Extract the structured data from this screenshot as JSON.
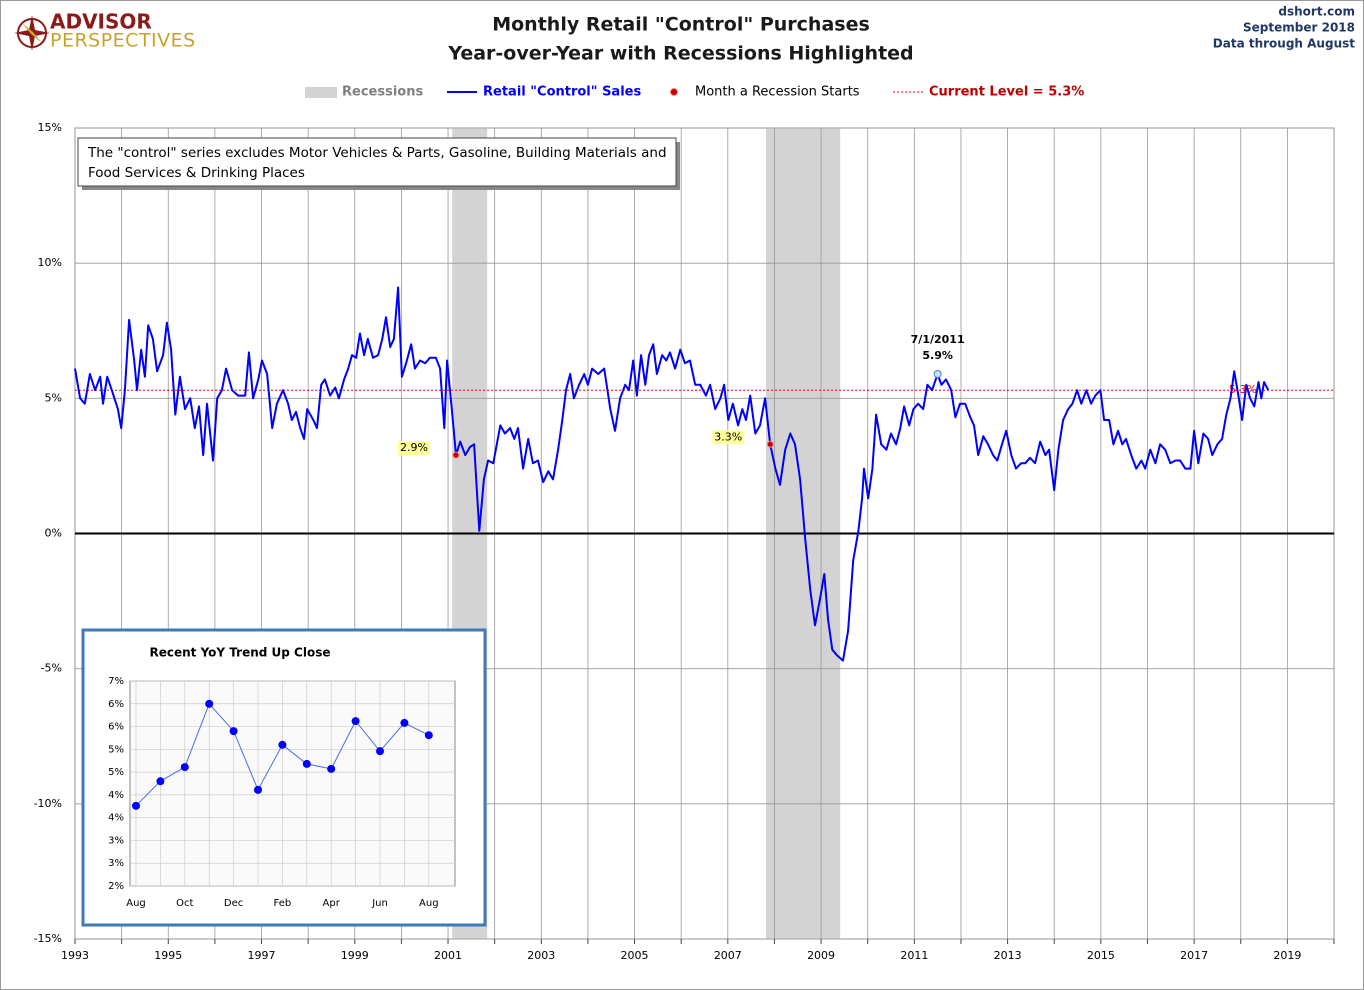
{
  "header": {
    "logo": [
      "ADVISOR",
      "PERSPECTIVES"
    ],
    "source": [
      "dshort.com",
      "September 2018",
      "Data through August"
    ]
  },
  "chart_data": [
    {
      "type": "line",
      "title": [
        "Monthly Retail \"Control\" Purchases",
        "Year-over-Year with Recessions Highlighted"
      ],
      "note": [
        "The \"control\"  series excludes Motor Vehicles & Parts, Gasoline, Building Materials and",
        "Food Services & Drinking Places"
      ],
      "xlim": [
        1993,
        2020
      ],
      "xticks": [
        1993,
        1995,
        1997,
        1999,
        2001,
        2003,
        2005,
        2007,
        2009,
        2011,
        2013,
        2015,
        2017,
        2019
      ],
      "x_minor_ticks": [
        1994,
        1996,
        1998,
        2000,
        2002,
        2004,
        2006,
        2008,
        2010,
        2012,
        2014,
        2016,
        2018,
        2020
      ],
      "ylim": [
        -15,
        15
      ],
      "yticks": [
        {
          "value": -15,
          "label": "-15%"
        },
        {
          "value": -10,
          "label": "-10%"
        },
        {
          "value": -5,
          "label": "-5%"
        },
        {
          "value": 0,
          "label": "0%"
        },
        {
          "value": 5,
          "label": "5%"
        },
        {
          "value": 10,
          "label": "10%"
        },
        {
          "value": 15,
          "label": "15%"
        }
      ],
      "grid": true,
      "recessions": {
        "name": "Recessions",
        "color": "#d3d3d3",
        "ranges": [
          [
            2001.09,
            2001.84
          ],
          [
            2007.82,
            2009.41
          ]
        ]
      },
      "x": [
        1993.0,
        1993.11,
        1993.21,
        1993.32,
        1993.43,
        1993.54,
        1993.6,
        1993.69,
        1993.79,
        1993.92,
        1993.99,
        1994.07,
        1994.16,
        1994.27,
        1994.33,
        1994.42,
        1994.5,
        1994.57,
        1994.67,
        1994.76,
        1994.89,
        1994.97,
        1995.06,
        1995.15,
        1995.25,
        1995.36,
        1995.47,
        1995.57,
        1995.66,
        1995.75,
        1995.83,
        1995.96,
        1996.05,
        1996.15,
        1996.24,
        1996.37,
        1996.5,
        1996.65,
        1996.73,
        1996.82,
        1996.93,
        1997.01,
        1997.12,
        1997.23,
        1997.33,
        1997.46,
        1997.57,
        1997.65,
        1997.74,
        1997.83,
        1997.91,
        1997.98,
        1998.11,
        1998.19,
        1998.28,
        1998.36,
        1998.47,
        1998.58,
        1998.66,
        1998.77,
        1998.86,
        1998.94,
        1999.03,
        1999.11,
        1999.2,
        1999.28,
        1999.39,
        1999.5,
        1999.59,
        1999.67,
        1999.76,
        1999.84,
        1999.93,
        2000.01,
        2000.1,
        2000.21,
        2000.29,
        2000.4,
        2000.51,
        2000.61,
        2000.74,
        2000.83,
        2000.92,
        2000.98,
        2001.07,
        2001.17,
        2001.26,
        2001.37,
        2001.47,
        2001.56,
        2001.67,
        2001.77,
        2001.86,
        2001.97,
        2002.12,
        2002.22,
        2002.33,
        2002.42,
        2002.5,
        2002.61,
        2002.72,
        2002.82,
        2002.93,
        2003.04,
        2003.15,
        2003.25,
        2003.36,
        2003.45,
        2003.53,
        2003.62,
        2003.7,
        2003.81,
        2003.92,
        2004.0,
        2004.09,
        2004.22,
        2004.35,
        2004.48,
        2004.58,
        2004.69,
        2004.8,
        2004.88,
        2004.97,
        2005.05,
        2005.14,
        2005.23,
        2005.31,
        2005.4,
        2005.48,
        2005.59,
        2005.68,
        2005.76,
        2005.87,
        2005.98,
        2006.08,
        2006.19,
        2006.3,
        2006.41,
        2006.53,
        2006.62,
        2006.73,
        2006.84,
        2006.92,
        2007.01,
        2007.11,
        2007.22,
        2007.31,
        2007.39,
        2007.48,
        2007.59,
        2007.69,
        2007.8,
        2007.91,
        2008.02,
        2008.12,
        2008.23,
        2008.34,
        2008.44,
        2008.55,
        2008.66,
        2008.77,
        2008.87,
        2008.98,
        2009.07,
        2009.15,
        2009.24,
        2009.34,
        2009.47,
        2009.58,
        2009.69,
        2009.8,
        2009.88,
        2009.92,
        2010.01,
        2010.1,
        2010.18,
        2010.29,
        2010.4,
        2010.5,
        2010.61,
        2010.7,
        2010.78,
        2010.89,
        2010.98,
        2011.08,
        2011.19,
        2011.28,
        2011.38,
        2011.5,
        2011.58,
        2011.68,
        2011.79,
        2011.88,
        2011.98,
        2012.09,
        2012.2,
        2012.28,
        2012.37,
        2012.48,
        2012.58,
        2012.69,
        2012.78,
        2012.88,
        2012.97,
        2013.08,
        2013.18,
        2013.29,
        2013.38,
        2013.48,
        2013.59,
        2013.7,
        2013.81,
        2013.89,
        2014.0,
        2014.09,
        2014.19,
        2014.3,
        2014.39,
        2014.49,
        2014.58,
        2014.69,
        2014.79,
        2014.88,
        2014.99,
        2015.07,
        2015.18,
        2015.27,
        2015.37,
        2015.46,
        2015.54,
        2015.65,
        2015.76,
        2015.87,
        2015.95,
        2016.06,
        2016.17,
        2016.27,
        2016.38,
        2016.49,
        2016.6,
        2016.7,
        2016.81,
        2016.92,
        2017.0,
        2017.09,
        2017.2,
        2017.3,
        2017.39,
        2017.5,
        2017.6,
        2017.69,
        2017.78,
        2017.86,
        2017.95,
        2018.03,
        2018.12,
        2018.2,
        2018.29,
        2018.38,
        2018.44,
        2018.5,
        2018.59
      ],
      "series": [
        {
          "name": "Retail \"Control\" Sales",
          "color": "#0000ff",
          "values": [
            6.1,
            5.0,
            4.8,
            5.9,
            5.3,
            5.8,
            4.8,
            5.8,
            5.3,
            4.6,
            3.9,
            5.3,
            7.9,
            6.4,
            5.3,
            6.8,
            5.8,
            7.7,
            7.2,
            6.0,
            6.6,
            7.8,
            6.8,
            4.4,
            5.8,
            4.6,
            5.0,
            3.9,
            4.7,
            2.9,
            4.8,
            2.7,
            5.0,
            5.3,
            6.1,
            5.3,
            5.1,
            5.1,
            6.7,
            5.0,
            5.7,
            6.4,
            5.9,
            3.9,
            4.8,
            5.3,
            4.8,
            4.2,
            4.5,
            3.9,
            3.5,
            4.6,
            4.2,
            3.9,
            5.5,
            5.7,
            5.1,
            5.4,
            5.0,
            5.7,
            6.1,
            6.6,
            6.5,
            7.4,
            6.6,
            7.2,
            6.5,
            6.6,
            7.2,
            8.0,
            6.9,
            7.2,
            9.1,
            5.8,
            6.3,
            7.0,
            6.1,
            6.4,
            6.3,
            6.5,
            6.5,
            6.1,
            3.9,
            6.4,
            4.8,
            2.9,
            3.4,
            2.9,
            3.2,
            3.3,
            0.1,
            2.0,
            2.7,
            2.6,
            4.0,
            3.7,
            3.9,
            3.5,
            3.9,
            2.4,
            3.5,
            2.6,
            2.7,
            1.9,
            2.3,
            2.0,
            3.1,
            4.2,
            5.3,
            5.9,
            5.0,
            5.5,
            5.9,
            5.5,
            6.1,
            5.9,
            6.1,
            4.6,
            3.8,
            5.0,
            5.5,
            5.3,
            6.4,
            5.1,
            6.6,
            5.5,
            6.6,
            7.0,
            5.9,
            6.6,
            6.4,
            6.7,
            6.1,
            6.8,
            6.3,
            6.4,
            5.5,
            5.5,
            5.1,
            5.5,
            4.6,
            5.0,
            5.5,
            4.2,
            4.8,
            4.0,
            4.6,
            4.2,
            5.1,
            3.7,
            4.0,
            5.0,
            3.3,
            2.4,
            1.8,
            3.1,
            3.7,
            3.3,
            2.0,
            -0.2,
            -2.1,
            -3.4,
            -2.4,
            -1.5,
            -3.2,
            -4.3,
            -4.5,
            -4.7,
            -3.6,
            -1.0,
            0.1,
            1.3,
            2.4,
            1.3,
            2.4,
            4.4,
            3.3,
            3.1,
            3.7,
            3.3,
            3.9,
            4.7,
            4.0,
            4.6,
            4.8,
            4.6,
            5.5,
            5.3,
            5.9,
            5.5,
            5.7,
            5.3,
            4.3,
            4.8,
            4.8,
            4.3,
            4.0,
            2.9,
            3.6,
            3.3,
            2.9,
            2.7,
            3.3,
            3.8,
            2.9,
            2.4,
            2.6,
            2.6,
            2.8,
            2.6,
            3.4,
            2.9,
            3.1,
            1.6,
            3.1,
            4.2,
            4.6,
            4.8,
            5.3,
            4.8,
            5.3,
            4.8,
            5.1,
            5.3,
            4.2,
            4.2,
            3.3,
            3.8,
            3.3,
            3.5,
            2.9,
            2.4,
            2.7,
            2.4,
            3.1,
            2.6,
            3.3,
            3.1,
            2.6,
            2.7,
            2.7,
            2.4,
            2.4,
            3.8,
            2.6,
            3.7,
            3.5,
            2.9,
            3.3,
            3.5,
            4.4,
            5.0,
            6.0,
            5.1,
            4.2,
            5.5,
            5.0,
            4.7,
            5.6,
            5.0,
            5.6,
            5.3
          ]
        }
      ],
      "recession_starts": {
        "name": "Month a Recession Starts",
        "color": "#c00000",
        "x": [
          2001.17,
          2007.91
        ],
        "values": [
          2.9,
          3.3
        ],
        "value_labels": [
          "2.9%",
          "3.3%"
        ]
      },
      "current_level": {
        "name": "Current Level = 5.3%",
        "color": "#ff0000",
        "value": 5.3,
        "value_label": "5.3%"
      },
      "peak": {
        "x": 2011.5,
        "value": 5.9,
        "labels": [
          "7/1/2011",
          "5.9%"
        ]
      }
    },
    {
      "type": "line",
      "title": "Recent  YoY Trend Up Close",
      "categories": [
        "Aug",
        null,
        "Oct",
        null,
        "Dec",
        null,
        "Feb",
        null,
        "Apr",
        null,
        "Jun",
        null,
        "Aug"
      ],
      "ylim": [
        2.0,
        6.5
      ],
      "yticks": [
        {
          "value": 2.0,
          "label": "2%"
        },
        {
          "value": 2.5,
          "label": "3%"
        },
        {
          "value": 3.0,
          "label": "3%"
        },
        {
          "value": 3.5,
          "label": "4%"
        },
        {
          "value": 4.0,
          "label": "4%"
        },
        {
          "value": 4.5,
          "label": "5%"
        },
        {
          "value": 5.0,
          "label": "5%"
        },
        {
          "value": 5.5,
          "label": "6%"
        },
        {
          "value": 6.0,
          "label": "6%"
        },
        {
          "value": 6.5,
          "label": "7%"
        }
      ],
      "grid": true,
      "series": [
        {
          "color": "#0000ff",
          "values": [
            3.76,
            4.3,
            4.61,
            6.0,
            5.4,
            4.11,
            5.1,
            4.68,
            4.57,
            5.62,
            4.96,
            5.58,
            5.31
          ]
        }
      ]
    }
  ]
}
